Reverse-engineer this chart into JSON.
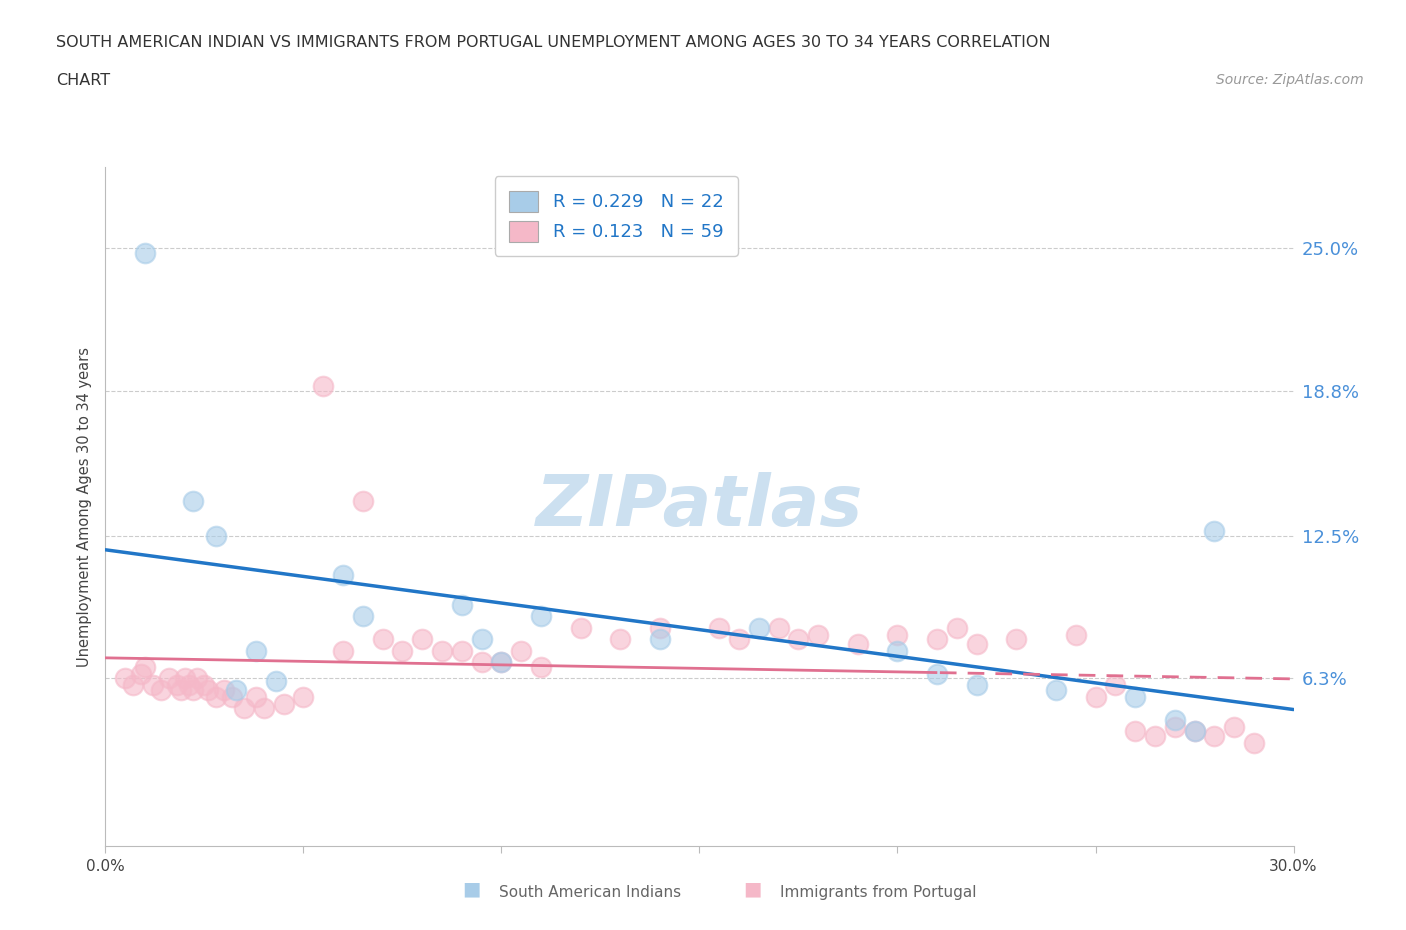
{
  "title_line1": "SOUTH AMERICAN INDIAN VS IMMIGRANTS FROM PORTUGAL UNEMPLOYMENT AMONG AGES 30 TO 34 YEARS CORRELATION",
  "title_line2": "CHART",
  "source_text": "Source: ZipAtlas.com",
  "ylabel": "Unemployment Among Ages 30 to 34 years",
  "xlim": [
    0.0,
    0.3
  ],
  "ylim": [
    -0.01,
    0.285
  ],
  "ytick_values": [
    0.0,
    0.063,
    0.125,
    0.188,
    0.25
  ],
  "ytick_labels": [
    "",
    "6.3%",
    "12.5%",
    "18.8%",
    "25.0%"
  ],
  "xtick_values": [
    0.0,
    0.05,
    0.1,
    0.15,
    0.2,
    0.25,
    0.3
  ],
  "xtick_labels": [
    "0.0%",
    "",
    "",
    "",
    "",
    "",
    "30.0%"
  ],
  "legend_R1": "0.229",
  "legend_N1": "22",
  "legend_R2": "0.123",
  "legend_N2": "59",
  "color_blue_scatter": "#a8cce8",
  "color_pink_scatter": "#f5b8c8",
  "color_blue_line": "#2176c7",
  "color_pink_line": "#e07090",
  "color_right_axis": "#4a90d9",
  "watermark_color": "#cce0f0",
  "blue_scatter_x": [
    0.01,
    0.022,
    0.028,
    0.033,
    0.038,
    0.043,
    0.06,
    0.065,
    0.09,
    0.095,
    0.1,
    0.11,
    0.14,
    0.165,
    0.2,
    0.21,
    0.22,
    0.24,
    0.26,
    0.27,
    0.275,
    0.28
  ],
  "blue_scatter_y": [
    0.248,
    0.14,
    0.125,
    0.058,
    0.075,
    0.062,
    0.108,
    0.09,
    0.095,
    0.08,
    0.07,
    0.09,
    0.08,
    0.085,
    0.075,
    0.065,
    0.06,
    0.058,
    0.055,
    0.045,
    0.04,
    0.127
  ],
  "pink_scatter_x": [
    0.005,
    0.007,
    0.009,
    0.01,
    0.012,
    0.014,
    0.016,
    0.018,
    0.019,
    0.02,
    0.021,
    0.022,
    0.023,
    0.025,
    0.026,
    0.028,
    0.03,
    0.032,
    0.035,
    0.038,
    0.04,
    0.045,
    0.05,
    0.055,
    0.06,
    0.065,
    0.07,
    0.075,
    0.08,
    0.085,
    0.09,
    0.095,
    0.1,
    0.105,
    0.11,
    0.12,
    0.13,
    0.14,
    0.155,
    0.16,
    0.17,
    0.175,
    0.18,
    0.19,
    0.2,
    0.21,
    0.215,
    0.22,
    0.23,
    0.245,
    0.25,
    0.255,
    0.26,
    0.265,
    0.27,
    0.275,
    0.28,
    0.285,
    0.29
  ],
  "pink_scatter_y": [
    0.063,
    0.06,
    0.065,
    0.068,
    0.06,
    0.058,
    0.063,
    0.06,
    0.058,
    0.063,
    0.06,
    0.058,
    0.063,
    0.06,
    0.058,
    0.055,
    0.058,
    0.055,
    0.05,
    0.055,
    0.05,
    0.052,
    0.055,
    0.19,
    0.075,
    0.14,
    0.08,
    0.075,
    0.08,
    0.075,
    0.075,
    0.07,
    0.07,
    0.075,
    0.068,
    0.085,
    0.08,
    0.085,
    0.085,
    0.08,
    0.085,
    0.08,
    0.082,
    0.078,
    0.082,
    0.08,
    0.085,
    0.078,
    0.08,
    0.082,
    0.055,
    0.06,
    0.04,
    0.038,
    0.042,
    0.04,
    0.038,
    0.042,
    0.035
  ]
}
